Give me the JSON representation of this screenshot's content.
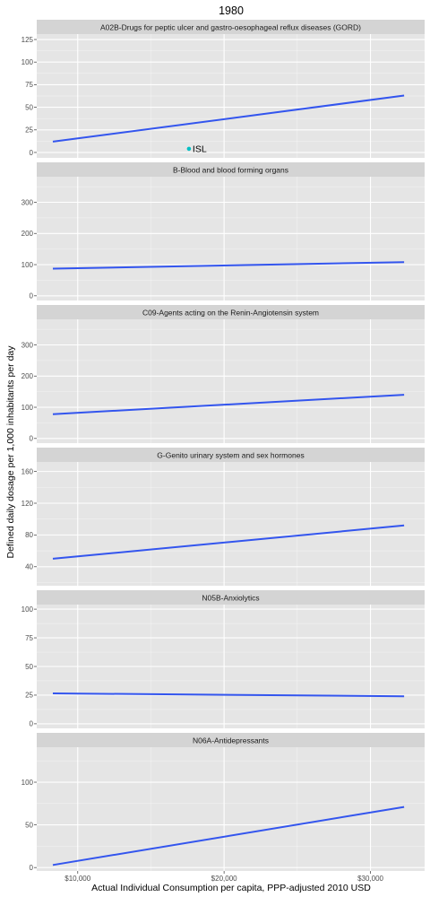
{
  "chart_data": {
    "type": "line",
    "title": "1980",
    "xlabel": "Actual Individual Consumption per capita, PPP-adjusted 2010 USD",
    "ylabel": "Defined daily dosage per 1,000 inhabitants per day",
    "xlim": [
      7200,
      33700
    ],
    "x_ticks": [
      10000,
      20000,
      30000
    ],
    "x_tick_labels": [
      "$10,000",
      "$20,000",
      "$30,000"
    ],
    "grid": true,
    "facets": [
      {
        "strip": "A02B-Drugs for peptic ulcer and gastro-oesophageal reflux diseases (GORD)",
        "ylim": [
          -6,
          131
        ],
        "y_ticks": [
          0,
          25,
          50,
          75,
          100,
          125
        ],
        "y_tick_labels": [
          "0",
          "25",
          "50",
          "75",
          "100",
          "125"
        ],
        "line": {
          "x": [
            8300,
            32300
          ],
          "y": [
            12,
            63
          ]
        },
        "points": [
          {
            "x": 17600,
            "y": 4,
            "label": "ISL",
            "color": "#00BFC4"
          }
        ]
      },
      {
        "strip": "B-Blood and blood forming organs",
        "ylim": [
          -15,
          382
        ],
        "y_ticks": [
          0,
          100,
          200,
          300
        ],
        "y_tick_labels": [
          "0",
          "100",
          "200",
          "300"
        ],
        "line": {
          "x": [
            8300,
            32300
          ],
          "y": [
            87,
            108
          ]
        },
        "points": []
      },
      {
        "strip": "C09-Agents acting on the Renin-Angiotensin system",
        "ylim": [
          -15,
          382
        ],
        "y_ticks": [
          0,
          100,
          200,
          300
        ],
        "y_tick_labels": [
          "0",
          "100",
          "200",
          "300"
        ],
        "line": {
          "x": [
            8300,
            32300
          ],
          "y": [
            78,
            140
          ]
        },
        "points": []
      },
      {
        "strip": "G-Genito urinary system and sex hormones",
        "ylim": [
          16,
          172
        ],
        "y_ticks": [
          40,
          80,
          120,
          160
        ],
        "y_tick_labels": [
          "40",
          "80",
          "120",
          "160"
        ],
        "line": {
          "x": [
            8300,
            32300
          ],
          "y": [
            50,
            92
          ]
        },
        "points": []
      },
      {
        "strip": "N05B-Anxiolytics",
        "ylim": [
          -4,
          104
        ],
        "y_ticks": [
          0,
          25,
          50,
          75,
          100
        ],
        "y_tick_labels": [
          "0",
          "25",
          "50",
          "75",
          "100"
        ],
        "line": {
          "x": [
            8300,
            32300
          ],
          "y": [
            26.5,
            24
          ]
        },
        "points": []
      },
      {
        "strip": "N06A-Antidepressants",
        "ylim": [
          -4,
          141
        ],
        "y_ticks": [
          0,
          50,
          100
        ],
        "y_tick_labels": [
          "0",
          "50",
          "100"
        ],
        "line": {
          "x": [
            8300,
            32300
          ],
          "y": [
            3,
            71
          ]
        },
        "points": []
      }
    ],
    "colors": {
      "panel": "#e5e5e5",
      "strip": "#d4d4d4",
      "grid_major": "#ffffff",
      "line": "#3355ee",
      "tick": "#4d4d4d"
    }
  }
}
